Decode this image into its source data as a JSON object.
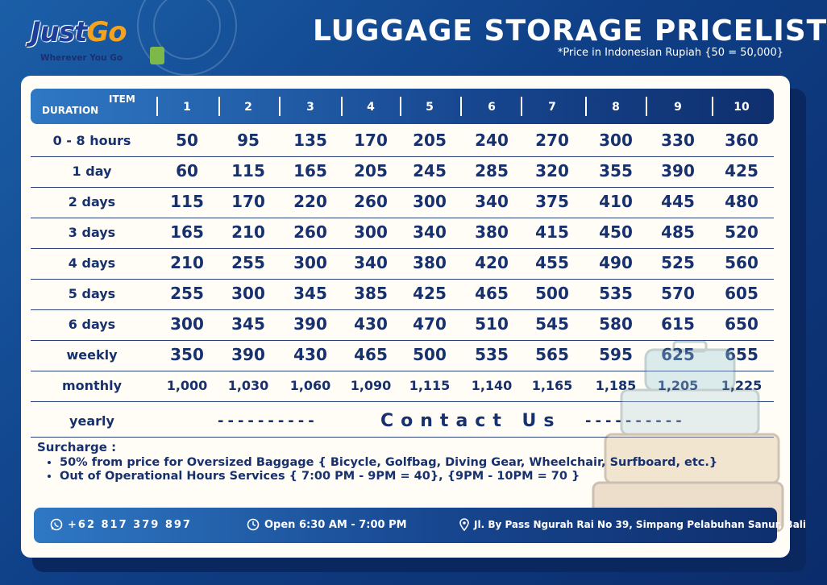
{
  "brand": {
    "name_part1": "Just",
    "name_part2": "Go",
    "tagline": "Wherever You Go"
  },
  "title": "LUGGAGE STORAGE PRICELIST",
  "subtitle": "*Price in Indonesian Rupiah {50 = 50,000}",
  "table": {
    "header_item": "ITEM",
    "header_duration": "DURATION",
    "columns": [
      "1",
      "2",
      "3",
      "4",
      "5",
      "6",
      "7",
      "8",
      "9",
      "10"
    ],
    "rows": [
      {
        "label": "0 - 8 hours",
        "values": [
          "50",
          "95",
          "135",
          "170",
          "205",
          "240",
          "270",
          "300",
          "330",
          "360"
        ]
      },
      {
        "label": "1 day",
        "values": [
          "60",
          "115",
          "165",
          "205",
          "245",
          "285",
          "320",
          "355",
          "390",
          "425"
        ]
      },
      {
        "label": "2 days",
        "values": [
          "115",
          "170",
          "220",
          "260",
          "300",
          "340",
          "375",
          "410",
          "445",
          "480"
        ]
      },
      {
        "label": "3 days",
        "values": [
          "165",
          "210",
          "260",
          "300",
          "340",
          "380",
          "415",
          "450",
          "485",
          "520"
        ]
      },
      {
        "label": "4 days",
        "values": [
          "210",
          "255",
          "300",
          "340",
          "380",
          "420",
          "455",
          "490",
          "525",
          "560"
        ]
      },
      {
        "label": "5 days",
        "values": [
          "255",
          "300",
          "345",
          "385",
          "425",
          "465",
          "500",
          "535",
          "570",
          "605"
        ]
      },
      {
        "label": "6 days",
        "values": [
          "300",
          "345",
          "390",
          "430",
          "470",
          "510",
          "545",
          "580",
          "615",
          "650"
        ]
      },
      {
        "label": "weekly",
        "values": [
          "350",
          "390",
          "430",
          "465",
          "500",
          "535",
          "565",
          "595",
          "625",
          "655"
        ]
      },
      {
        "label": "monthly",
        "values": [
          "1,000",
          "1,030",
          "1,060",
          "1,090",
          "1,115",
          "1,140",
          "1,165",
          "1,185",
          "1,205",
          "1,225"
        ]
      }
    ],
    "yearly": {
      "label": "yearly",
      "dashes_left": "----------",
      "contact": "Contact Us",
      "dashes_right": "----------"
    }
  },
  "surcharge": {
    "heading": "Surcharge :",
    "items": [
      "50% from price for Oversized Baggage { Bicycle, Golfbag, Diving Gear, Wheelchair, Surfboard, etc.}",
      "Out of Operational Hours Services { 7:00  PM - 9PM = 40}, {9PM - 10PM = 70 }"
    ]
  },
  "footer": {
    "phone": "+62 817 379 897",
    "hours": "Open 6:30 AM - 7:00 PM",
    "address": "Jl. By Pass Ngurah Rai No 39, Simpang Pelabuhan Sanur, Bali",
    "icons": [
      "whatsapp-icon",
      "clock-icon",
      "location-pin-icon"
    ]
  },
  "colors": {
    "navy": "#17306e",
    "gold": "#f4a31e",
    "card": "#fffdf6",
    "bg": "#0f3f86"
  }
}
